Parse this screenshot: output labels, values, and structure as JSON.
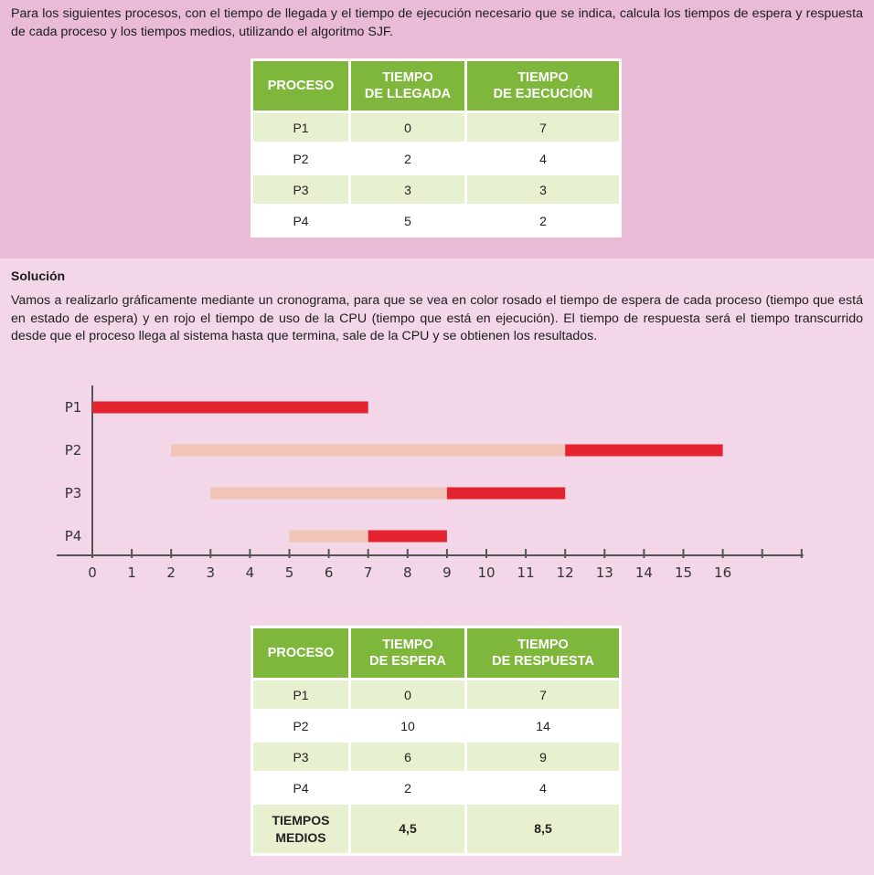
{
  "statement": "Para los siguientes procesos, con el tiempo de llegada y el tiempo de ejecución necesario que se indica, calcula los tiempos de espera y respuesta de cada proceso y los tiempos medios, utilizando el algoritmo SJF.",
  "input_table": {
    "headers": [
      [
        "PROCESO"
      ],
      [
        "TIEMPO",
        "DE LLEGADA"
      ],
      [
        "TIEMPO",
        "DE EJECUCIÓN"
      ]
    ],
    "rows": [
      [
        "P1",
        "0",
        "7"
      ],
      [
        "P2",
        "2",
        "4"
      ],
      [
        "P3",
        "3",
        "3"
      ],
      [
        "P4",
        "5",
        "2"
      ]
    ]
  },
  "solution_title": "Solución",
  "solution_text": "Vamos a realizarlo gráficamente mediante un cronograma, para que se vea en color rosado el tiempo de espera de cada proceso (tiempo que está en estado de espera) y en rojo el tiempo de uso de la CPU (tiempo que está en ejecución). El tiempo de respuesta será el tiempo transcurrido desde que el proceso llega al sistema hasta que termina, sale de la CPU y se obtienen los resultados.",
  "chart_data": {
    "type": "gantt",
    "processes": [
      "P1",
      "P2",
      "P3",
      "P4"
    ],
    "x_ticks": [
      0,
      1,
      2,
      3,
      4,
      5,
      6,
      7,
      8,
      9,
      10,
      11,
      12,
      13,
      14,
      15,
      16
    ],
    "xlim": [
      0,
      18
    ],
    "waiting_color": "#f0c4b6",
    "running_color": "#e3242f",
    "bars": [
      {
        "process": "P1",
        "wait": [
          0,
          0
        ],
        "run": [
          0,
          7
        ]
      },
      {
        "process": "P2",
        "wait": [
          2,
          12
        ],
        "run": [
          12,
          16
        ]
      },
      {
        "process": "P3",
        "wait": [
          3,
          9
        ],
        "run": [
          9,
          12
        ]
      },
      {
        "process": "P4",
        "wait": [
          5,
          7
        ],
        "run": [
          7,
          9
        ]
      }
    ]
  },
  "result_table": {
    "headers": [
      [
        "PROCESO"
      ],
      [
        "TIEMPO",
        "DE ESPERA"
      ],
      [
        "TIEMPO",
        "DE RESPUESTA"
      ]
    ],
    "rows": [
      [
        "P1",
        "0",
        "7"
      ],
      [
        "P2",
        "10",
        "14"
      ],
      [
        "P3",
        "6",
        "9"
      ],
      [
        "P4",
        "2",
        "4"
      ]
    ],
    "average_label": [
      "TIEMPOS",
      "MEDIOS"
    ],
    "average_values": [
      "4,5",
      "8,5"
    ]
  }
}
